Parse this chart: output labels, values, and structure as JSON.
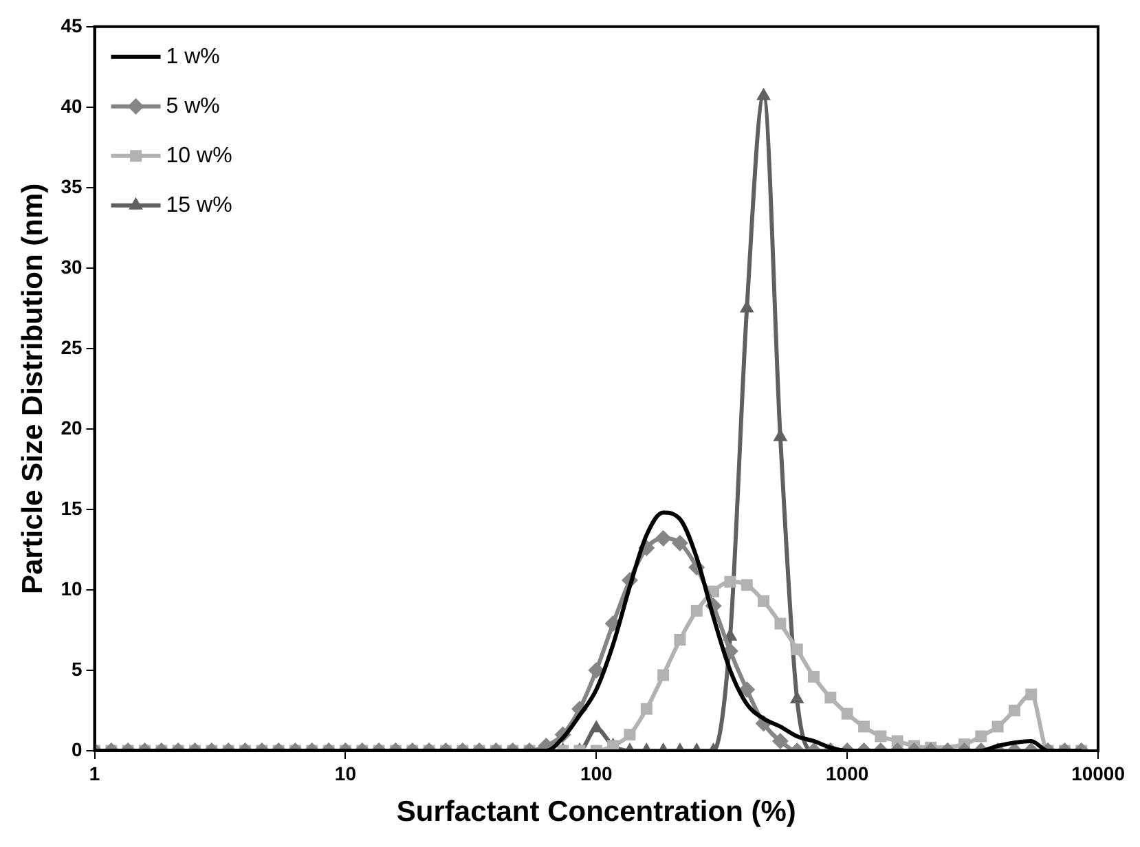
{
  "chart_data": {
    "type": "line",
    "xlabel": "Surfactant Concentration (%)",
    "ylabel": "Particle Size Distribution (nm)",
    "x": [
      1,
      1.166,
      1.359,
      1.585,
      1.848,
      2.154,
      2.512,
      2.929,
      3.415,
      3.981,
      4.642,
      5.412,
      6.31,
      7.356,
      8.577,
      10,
      11.66,
      13.59,
      15.85,
      18.48,
      21.54,
      25.12,
      29.29,
      34.15,
      39.81,
      46.42,
      54.12,
      63.1,
      73.56,
      85.77,
      100,
      116.6,
      135.9,
      158.5,
      184.8,
      215.4,
      251.2,
      292.9,
      341.5,
      398.1,
      464.2,
      541.2,
      631,
      735.6,
      857.7,
      1000,
      1166,
      1359,
      1585,
      1848,
      2154,
      2512,
      2929,
      3415,
      3981,
      4642,
      5412,
      6310,
      7356,
      8577
    ],
    "series": [
      {
        "name": "1 w%",
        "color": "#000000",
        "marker": "none",
        "values": [
          0,
          0,
          0,
          0,
          0,
          0,
          0,
          0,
          0,
          0,
          0,
          0,
          0,
          0,
          0,
          0,
          0,
          0,
          0,
          0,
          0,
          0,
          0,
          0,
          0,
          0,
          0,
          0,
          0.8,
          2.2,
          3.8,
          6.6,
          10.2,
          13.4,
          14.8,
          14.4,
          12.0,
          8.3,
          5.0,
          2.9,
          2.0,
          1.5,
          0.9,
          0.6,
          0.2,
          0,
          0,
          0,
          0,
          0,
          0,
          0,
          0,
          0,
          0.3,
          0.5,
          0.6,
          0,
          0,
          0
        ]
      },
      {
        "name": "5 w%",
        "color": "#858585",
        "marker": "diamond",
        "values": [
          0,
          0,
          0,
          0,
          0,
          0,
          0,
          0,
          0,
          0,
          0,
          0,
          0,
          0,
          0,
          0,
          0,
          0,
          0,
          0,
          0,
          0,
          0,
          0,
          0,
          0,
          0,
          0.3,
          1.0,
          2.6,
          5.0,
          7.9,
          10.6,
          12.6,
          13.2,
          12.9,
          11.4,
          9.0,
          6.2,
          3.8,
          1.7,
          0.6,
          0,
          0,
          0,
          0,
          0,
          0,
          0,
          0,
          0,
          0,
          0,
          0,
          0,
          0,
          0,
          0,
          0,
          0
        ]
      },
      {
        "name": "10 w%",
        "color": "#b2b2b2",
        "marker": "square",
        "values": [
          0,
          0,
          0,
          0,
          0,
          0,
          0,
          0,
          0,
          0,
          0,
          0,
          0,
          0,
          0,
          0,
          0,
          0,
          0,
          0,
          0,
          0,
          0,
          0,
          0,
          0,
          0,
          0,
          0,
          0,
          0,
          0.3,
          1.0,
          2.6,
          4.7,
          6.9,
          8.7,
          9.9,
          10.5,
          10.3,
          9.3,
          7.9,
          6.3,
          4.6,
          3.3,
          2.3,
          1.5,
          0.9,
          0.6,
          0.3,
          0.2,
          null,
          0.4,
          0.9,
          1.5,
          2.5,
          3.5,
          0,
          0,
          0
        ]
      },
      {
        "name": "15 w%",
        "color": "#606060",
        "marker": "triangle",
        "values": [
          0,
          0,
          0,
          0,
          0,
          0,
          0,
          0,
          0,
          0,
          0,
          0,
          0,
          0,
          0,
          0,
          0,
          0,
          0,
          0,
          0,
          0,
          0,
          0,
          0,
          0,
          0,
          0,
          0,
          0,
          1.4,
          0.3,
          0,
          0,
          0,
          0,
          0,
          0,
          7.1,
          27.5,
          40.7,
          19.5,
          3.2,
          0,
          0,
          0,
          0,
          0,
          0,
          0,
          0,
          0,
          0,
          0,
          0,
          0,
          0,
          0,
          0,
          0
        ]
      }
    ],
    "log": "x",
    "xlim": [
      1,
      10000
    ],
    "xticks": [
      1,
      10,
      100,
      1000,
      10000
    ],
    "ylim": [
      0,
      45
    ],
    "yticks": [
      0,
      5,
      10,
      15,
      20,
      25,
      30,
      35,
      40,
      45
    ],
    "grid": false,
    "legend": "top left"
  }
}
